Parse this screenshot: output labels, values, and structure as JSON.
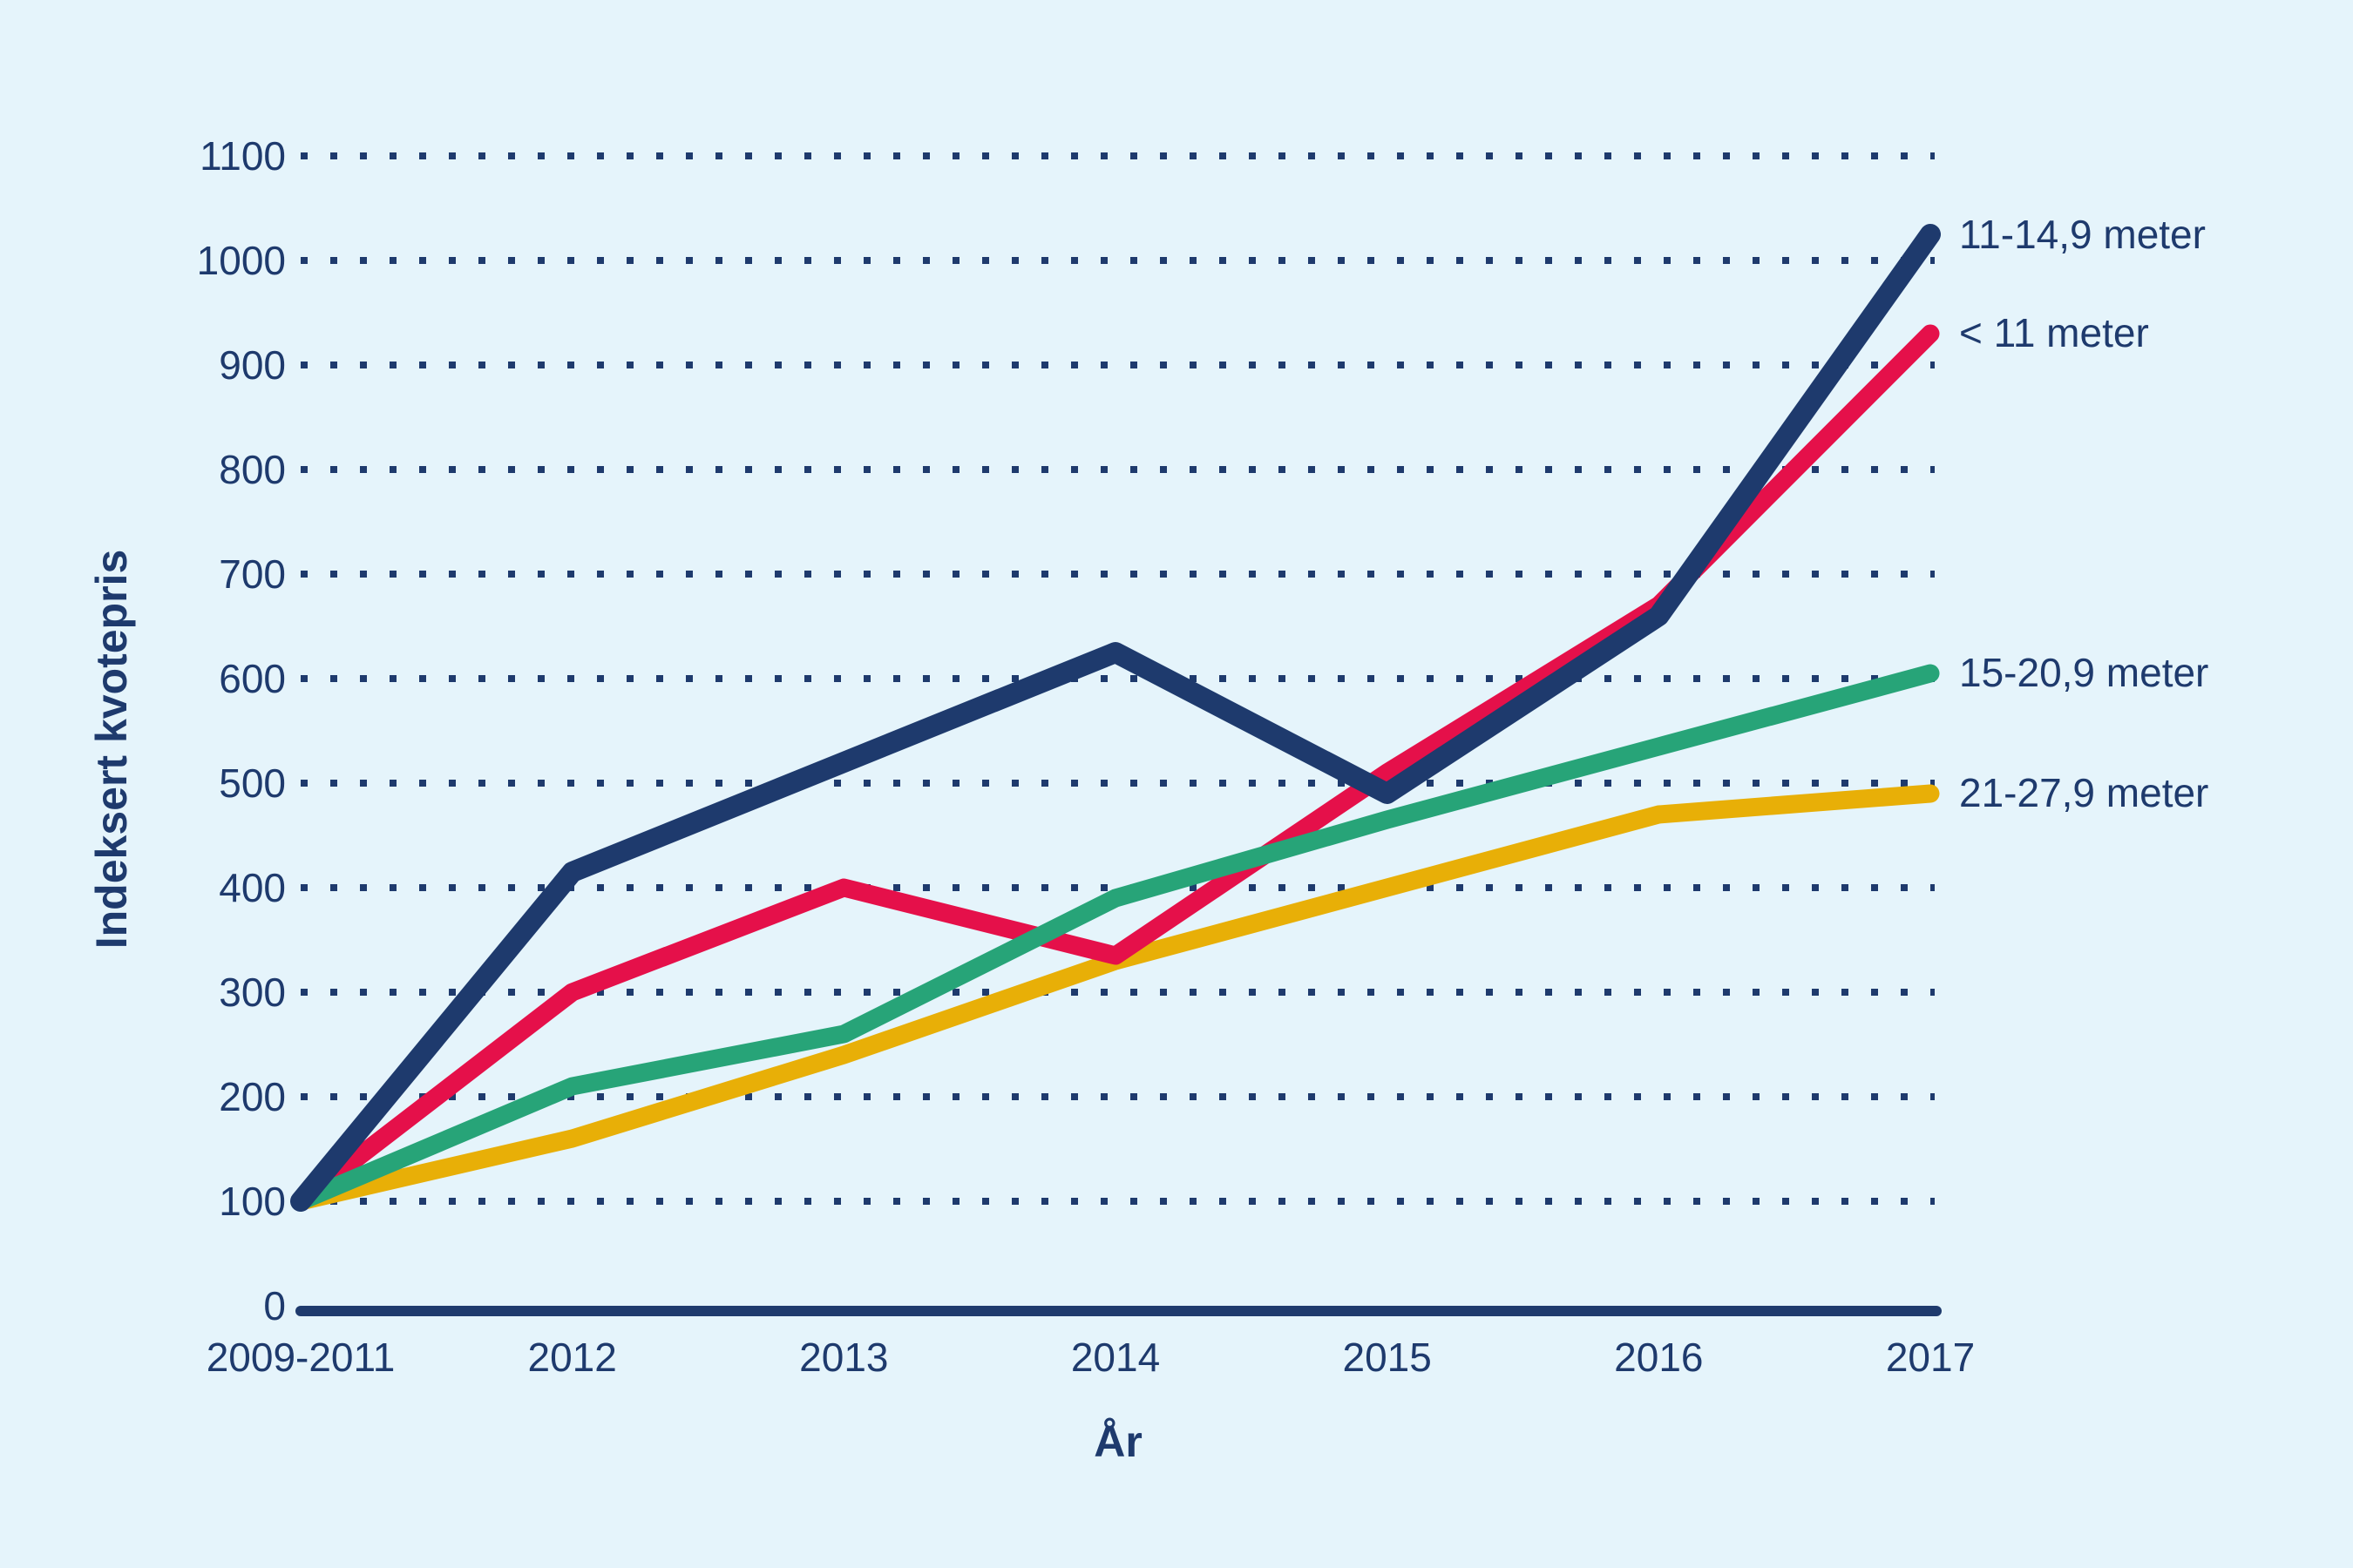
{
  "page": {
    "background_color": "#e5f4fb",
    "text_color": "#1e3a6d"
  },
  "chart_data": {
    "type": "line",
    "title": "",
    "xlabel": "År",
    "ylabel": "Indeksert kvotepris",
    "categories": [
      "2009-2011",
      "2012",
      "2013",
      "2014",
      "2015",
      "2016",
      "2017"
    ],
    "y_ticks": [
      0,
      100,
      200,
      300,
      400,
      500,
      600,
      700,
      800,
      900,
      1000,
      1100
    ],
    "ylim": [
      0,
      1100
    ],
    "grid": "horizontal-dotted",
    "legend_position": "right-of-line-ends",
    "series": [
      {
        "name": "11-14,9 meter",
        "color": "#1e3a6d",
        "values": [
          100,
          415,
          520,
          625,
          490,
          660,
          1025
        ]
      },
      {
        "name": "< 11 meter",
        "color": "#e5104a",
        "values": [
          100,
          300,
          400,
          335,
          510,
          670,
          930
        ]
      },
      {
        "name": "15-20,9 meter",
        "color": "#27a478",
        "values": [
          100,
          210,
          260,
          390,
          465,
          535,
          605
        ]
      },
      {
        "name": "21-27,9 meter",
        "color": "#e8af07",
        "values": [
          100,
          160,
          240,
          330,
          400,
          470,
          490
        ]
      }
    ]
  }
}
